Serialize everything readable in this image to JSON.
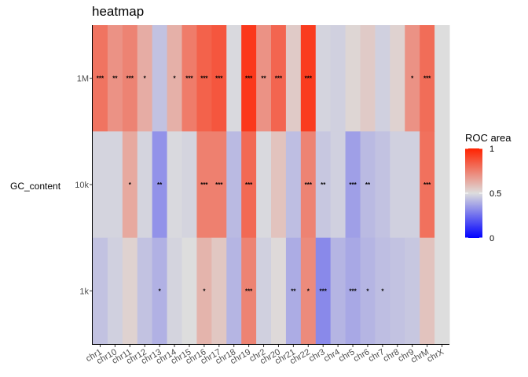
{
  "chart_data": {
    "type": "heatmap",
    "title": "heatmap",
    "xlabel": "",
    "ylabel": "GC_content",
    "x_categories": [
      "chr1",
      "chr10",
      "chr11",
      "chr12",
      "chr13",
      "chr14",
      "chr15",
      "chr16",
      "chr17",
      "chr18",
      "chr19",
      "chr2",
      "chr20",
      "chr21",
      "chr22",
      "chr3",
      "chr4",
      "chr5",
      "chr6",
      "chr7",
      "chr8",
      "chr9",
      "chrM",
      "chrX"
    ],
    "y_categories": [
      "1M",
      "10k",
      "1k"
    ],
    "values": [
      [
        0.78,
        0.7,
        0.74,
        0.63,
        0.44,
        0.62,
        0.76,
        0.83,
        0.86,
        0.49,
        0.94,
        0.7,
        0.82,
        0.55,
        0.93,
        0.48,
        0.47,
        0.52,
        0.55,
        0.47,
        0.53,
        0.7,
        0.8,
        0.5
      ],
      [
        0.48,
        0.48,
        0.64,
        0.48,
        0.33,
        0.49,
        0.48,
        0.75,
        0.75,
        0.42,
        0.81,
        0.49,
        0.57,
        0.43,
        0.74,
        0.45,
        0.47,
        0.36,
        0.42,
        0.44,
        0.47,
        0.47,
        0.79,
        0.5
      ],
      [
        0.44,
        0.47,
        0.53,
        0.44,
        0.4,
        0.48,
        0.5,
        0.61,
        0.56,
        0.41,
        0.74,
        0.47,
        0.51,
        0.39,
        0.72,
        0.31,
        0.41,
        0.38,
        0.41,
        0.43,
        0.44,
        0.45,
        0.57,
        0.5
      ]
    ],
    "significance": [
      [
        "***",
        "**",
        "***",
        "*",
        "",
        "*",
        "***",
        "***",
        "***",
        "",
        "***",
        "**",
        "***",
        "",
        "***",
        "",
        "",
        "",
        "",
        "",
        "",
        "*",
        "***",
        ""
      ],
      [
        "",
        "",
        "*",
        "",
        "**",
        "",
        "",
        "***",
        "***",
        "",
        "***",
        "",
        "",
        "",
        "***",
        "**",
        "",
        "***",
        "**",
        "",
        "",
        "",
        "***",
        ""
      ],
      [
        "",
        "",
        "",
        "",
        "*",
        "",
        "",
        "*",
        "",
        "",
        "***",
        "",
        "",
        "**",
        "*",
        "***",
        "",
        "***",
        "*",
        "*",
        "",
        "",
        "",
        ""
      ]
    ],
    "legend": {
      "title": "ROC area",
      "ticks": [
        "1",
        "0.5",
        "0"
      ],
      "tick_values": [
        1,
        0.5,
        0
      ],
      "range": [
        0,
        1
      ],
      "low_color": "#0000ff",
      "mid_color": "#dddddd",
      "high_color": "#ff2200",
      "placement": "right"
    },
    "grid": false
  }
}
